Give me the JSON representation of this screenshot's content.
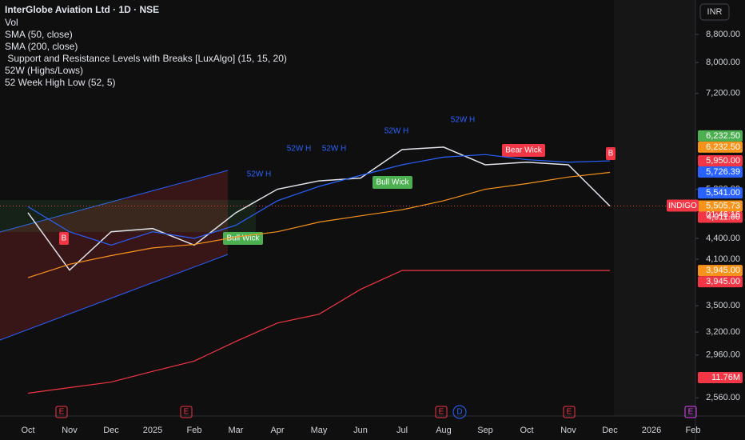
{
  "chart_data": {
    "type": "line",
    "title": "InterGlobe Aviation Ltd · 1D · NSE",
    "indicators": [
      "Vol",
      "SMA (50, close)",
      "SMA (200, close)",
      " Support and Resistance Levels with Breaks [LuxAlgo] (15, 15, 20)",
      "52W (Highs/Lows)",
      "52 Week High Low (52, 5)"
    ],
    "currency": "INR",
    "symbol": "INDIGO",
    "countdown": "01:46:16",
    "log_scale": true,
    "categories": [
      "Oct",
      "Nov",
      "Dec",
      "2025",
      "Feb",
      "Mar",
      "Apr",
      "May",
      "Jun",
      "Jul",
      "Aug",
      "Sep",
      "Oct",
      "Nov",
      "Dec",
      "2026",
      "Feb"
    ],
    "series": [
      {
        "name": "Close",
        "color": "#e0e3eb",
        "values": [
          4800,
          3950,
          4500,
          4550,
          4300,
          4800,
          5200,
          5350,
          5400,
          5950,
          6000,
          5650,
          5700,
          5650,
          4911,
          null,
          null
        ]
      },
      {
        "name": "SMA (50, close)",
        "color": "#2962ff",
        "values": [
          4900,
          4500,
          4300,
          4500,
          4400,
          4600,
          5000,
          5250,
          5450,
          5650,
          5800,
          5850,
          5750,
          5700,
          5726.39,
          null,
          null
        ]
      },
      {
        "name": "SMA (200, close)",
        "color": "#f7931a",
        "values": [
          3850,
          4030,
          4150,
          4260,
          4310,
          4420,
          4500,
          4650,
          4750,
          4850,
          5000,
          5200,
          5300,
          5420,
          5505.73,
          null,
          null
        ]
      },
      {
        "name": "52W Low",
        "color": "#f23645",
        "values": [
          2600,
          2650,
          2700,
          2800,
          2900,
          3100,
          3300,
          3400,
          3700,
          3945,
          3945,
          3945,
          3945,
          3945,
          3945,
          null,
          null
        ]
      }
    ],
    "ylim": [
      2406,
      9892
    ],
    "yticks": [
      {
        "value": 8800,
        "label": "8,800.00"
      },
      {
        "value": 8000,
        "label": "8,000.00"
      },
      {
        "value": 7200,
        "label": "7,200.00"
      },
      {
        "value": 5200,
        "label": "5,200.00"
      },
      {
        "value": 4400,
        "label": "4,400.00"
      },
      {
        "value": 4100,
        "label": "4,100.00"
      },
      {
        "value": 3500,
        "label": "3,500.00"
      },
      {
        "value": 3200,
        "label": "3,200.00"
      },
      {
        "value": 2960,
        "label": "2,960.00"
      },
      {
        "value": 2560,
        "label": "2,560.00"
      }
    ],
    "price_labels": [
      {
        "value": 6232.5,
        "label": "6,232.50",
        "color": "#4caf50"
      },
      {
        "value": 6232.5,
        "label": "6,232.50",
        "color": "#f7931a"
      },
      {
        "value": 5950,
        "label": "5,950.00",
        "color": "#f23645"
      },
      {
        "value": 5726.39,
        "label": "5,726.39",
        "color": "#2962ff"
      },
      {
        "value": 5541,
        "label": "5,541.00",
        "color": "#2962ff"
      },
      {
        "value": 5505.73,
        "label": "5,505.73",
        "color": "#f7931a"
      },
      {
        "value": 4911,
        "label": "4,911.00",
        "color": "#f23645"
      },
      {
        "value": 3945,
        "label": "3,945.00",
        "color": "#f7931a"
      },
      {
        "value": 3945,
        "label": "3,945.00",
        "color": "#f23645"
      }
    ],
    "volume_label": "11.76M",
    "annotations": [
      "Bull Wick",
      "Bear Wick",
      "Bull Wick",
      "52W H",
      "52W H",
      "52W H",
      "52W H",
      "52W H",
      "B",
      "B",
      "E",
      "E",
      "E",
      "E",
      "D",
      "E"
    ]
  }
}
